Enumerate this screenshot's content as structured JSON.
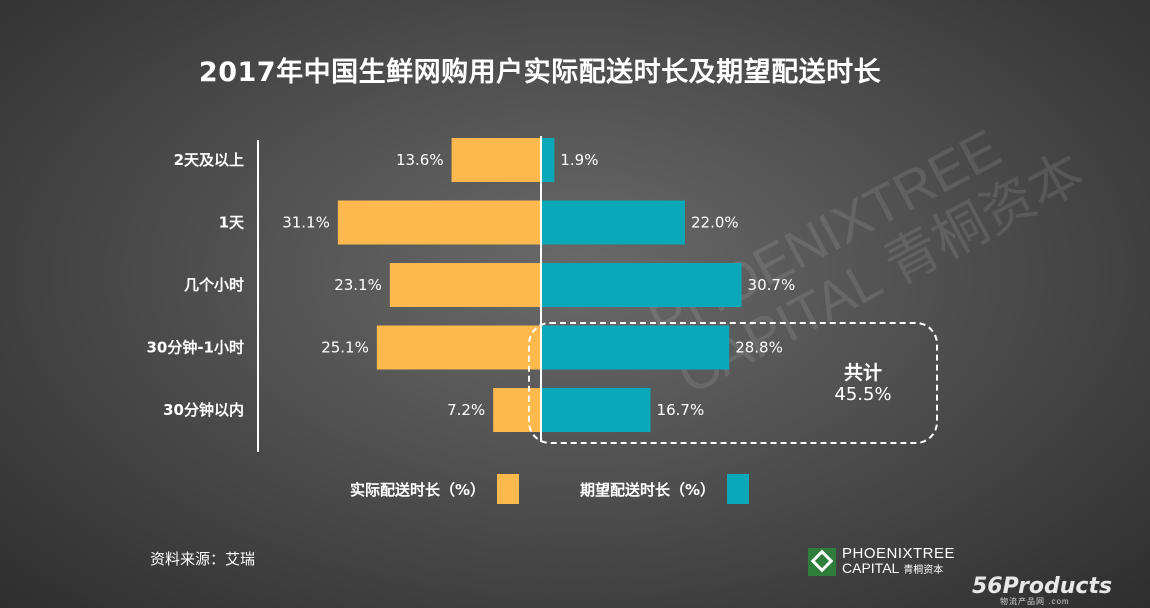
{
  "title": "2017年中国生鲜网购用户实际配送时长及期望配送时长",
  "chart_data": {
    "type": "bar",
    "orientation": "horizontal-diverging",
    "categories": [
      "2天及以上",
      "1天",
      "几个小时",
      "30分钟-1小时",
      "30分钟以内"
    ],
    "series": [
      {
        "name": "实际配送时长（%）",
        "values": [
          13.6,
          31.1,
          23.1,
          25.1,
          7.2
        ],
        "labels": [
          "13.6%",
          "31.1%",
          "23.1%",
          "25.1%",
          "7.2%"
        ],
        "color": "#FDB94E"
      },
      {
        "name": "期望配送时长（%）",
        "values": [
          1.9,
          22.0,
          30.7,
          28.8,
          16.7
        ],
        "labels": [
          "1.9%",
          "22.0%",
          "30.7%",
          "28.8%",
          "16.7%"
        ],
        "color": "#0AA8B8"
      }
    ],
    "annotation": {
      "label": "共计",
      "value": "45.5%"
    }
  },
  "legend": {
    "actual": "实际配送时长（%）",
    "expected": "期望配送时长（%）"
  },
  "source": "资料来源：艾瑞",
  "logo": {
    "name": "PHOENIXTREE",
    "sub": "CAPITAL",
    "sub_cn": "青桐资本"
  },
  "watermark": [
    "PHOENIXTREE",
    "CAPITAL 青桐资本"
  ],
  "brand": {
    "name": "56Products",
    "sub": "物流产品网 .com"
  }
}
